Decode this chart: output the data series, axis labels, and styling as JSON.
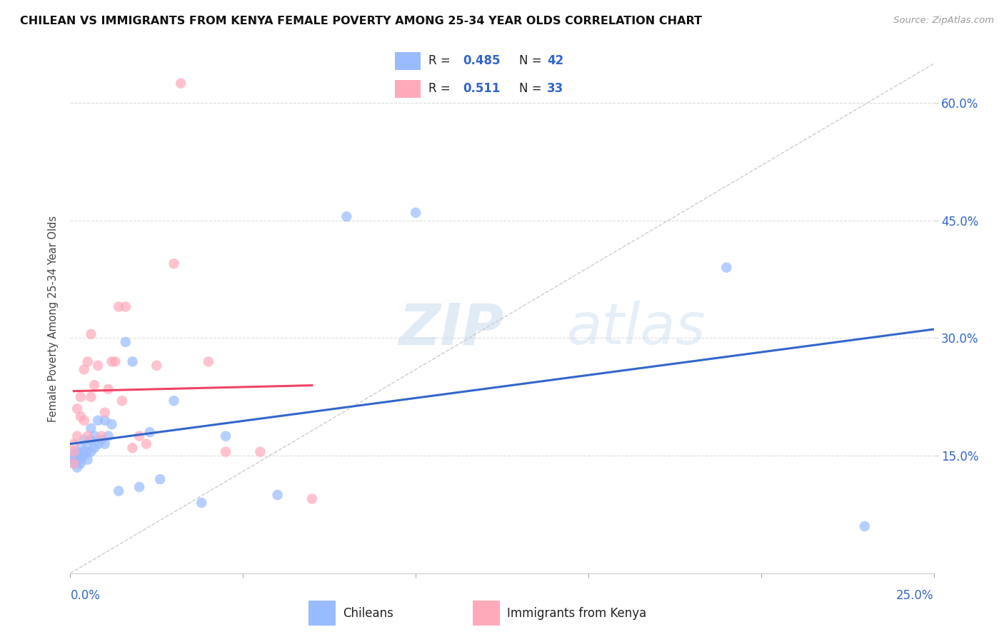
{
  "title": "CHILEAN VS IMMIGRANTS FROM KENYA FEMALE POVERTY AMONG 25-34 YEAR OLDS CORRELATION CHART",
  "source": "Source: ZipAtlas.com",
  "ylabel": "Female Poverty Among 25-34 Year Olds",
  "xlim": [
    0.0,
    0.25
  ],
  "ylim": [
    0.0,
    0.65
  ],
  "yticks": [
    0.15,
    0.3,
    0.45,
    0.6
  ],
  "ytick_labels": [
    "15.0%",
    "30.0%",
    "45.0%",
    "60.0%"
  ],
  "watermark_zip": "ZIP",
  "watermark_atlas": "atlas",
  "legend_R1": "0.485",
  "legend_N1": "42",
  "legend_R2": "0.511",
  "legend_N2": "33",
  "color_chilean": "#99bbff",
  "color_kenya": "#ffaabb",
  "color_chilean_line": "#3366cc",
  "color_kenya_line": "#ee4466",
  "color_blue": "#3366cc",
  "background": "#FFFFFF",
  "chilean_x": [
    0.001,
    0.001,
    0.001,
    0.001,
    0.002,
    0.002,
    0.002,
    0.003,
    0.003,
    0.003,
    0.004,
    0.004,
    0.004,
    0.005,
    0.005,
    0.005,
    0.006,
    0.006,
    0.006,
    0.007,
    0.007,
    0.008,
    0.008,
    0.009,
    0.01,
    0.01,
    0.011,
    0.012,
    0.014,
    0.016,
    0.018,
    0.02,
    0.023,
    0.026,
    0.03,
    0.038,
    0.045,
    0.06,
    0.08,
    0.1,
    0.19,
    0.23
  ],
  "chilean_y": [
    0.14,
    0.145,
    0.15,
    0.155,
    0.135,
    0.145,
    0.155,
    0.14,
    0.145,
    0.16,
    0.15,
    0.155,
    0.17,
    0.145,
    0.155,
    0.165,
    0.155,
    0.17,
    0.185,
    0.16,
    0.175,
    0.165,
    0.195,
    0.17,
    0.165,
    0.195,
    0.175,
    0.19,
    0.105,
    0.295,
    0.27,
    0.11,
    0.18,
    0.12,
    0.22,
    0.09,
    0.175,
    0.1,
    0.455,
    0.46,
    0.39,
    0.06
  ],
  "kenya_x": [
    0.001,
    0.001,
    0.001,
    0.002,
    0.002,
    0.003,
    0.003,
    0.004,
    0.004,
    0.005,
    0.005,
    0.006,
    0.006,
    0.007,
    0.008,
    0.009,
    0.01,
    0.011,
    0.012,
    0.013,
    0.014,
    0.015,
    0.016,
    0.018,
    0.02,
    0.022,
    0.025,
    0.03,
    0.032,
    0.04,
    0.045,
    0.055,
    0.07
  ],
  "kenya_y": [
    0.14,
    0.155,
    0.165,
    0.175,
    0.21,
    0.2,
    0.225,
    0.195,
    0.26,
    0.175,
    0.27,
    0.225,
    0.305,
    0.24,
    0.265,
    0.175,
    0.205,
    0.235,
    0.27,
    0.27,
    0.34,
    0.22,
    0.34,
    0.16,
    0.175,
    0.165,
    0.265,
    0.395,
    0.625,
    0.27,
    0.155,
    0.155,
    0.095
  ]
}
